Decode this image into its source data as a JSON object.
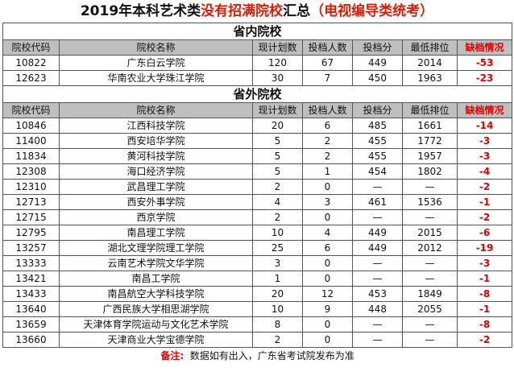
{
  "title": {
    "prefix": "2019年本科艺术类",
    "highlight": "没有招满院校",
    "middle": "汇总",
    "suffix": "（电视编导类统考）"
  },
  "columns": [
    "院校代码",
    "院校名称",
    "现计划数",
    "投档人数",
    "投档分",
    "最低排位",
    "缺档情况"
  ],
  "sections": [
    {
      "label": "省内院校",
      "rows": [
        [
          "10822",
          "广东白云学院",
          "120",
          "67",
          "449",
          "2014",
          "-53"
        ],
        [
          "12623",
          "华南农业大学珠江学院",
          "30",
          "7",
          "450",
          "1963",
          "-23"
        ]
      ]
    },
    {
      "label": "省外院校",
      "rows": [
        [
          "10846",
          "江西科技学院",
          "20",
          "6",
          "485",
          "1661",
          "-14"
        ],
        [
          "11400",
          "西安培华学院",
          "5",
          "2",
          "455",
          "1772",
          "-3"
        ],
        [
          "11834",
          "黄河科技学院",
          "5",
          "2",
          "455",
          "1957",
          "-3"
        ],
        [
          "12308",
          "海口经济学院",
          "5",
          "1",
          "454",
          "1802",
          "-4"
        ],
        [
          "12310",
          "武昌理工学院",
          "2",
          "0",
          "—",
          "—",
          "-2"
        ],
        [
          "12713",
          "西安外事学院",
          "4",
          "3",
          "461",
          "1536",
          "-1"
        ],
        [
          "12715",
          "西京学院",
          "2",
          "0",
          "—",
          "—",
          "-2"
        ],
        [
          "12795",
          "南昌理工学院",
          "10",
          "4",
          "449",
          "2015",
          "-6"
        ],
        [
          "13257",
          "湖北文理学院理工学院",
          "25",
          "6",
          "449",
          "2012",
          "-19"
        ],
        [
          "13333",
          "云南艺术学院文华学院",
          "3",
          "0",
          "—",
          "—",
          "-3"
        ],
        [
          "13421",
          "南昌工学院",
          "1",
          "0",
          "—",
          "—",
          "-1"
        ],
        [
          "13433",
          "南昌航空大学科技学院",
          "20",
          "12",
          "453",
          "1849",
          "-8"
        ],
        [
          "13640",
          "广西民族大学相思湖学院",
          "10",
          "9",
          "448",
          "2055",
          "-1"
        ],
        [
          "13659",
          "天津体育学院运动与文化艺术学院",
          "8",
          "0",
          "—",
          "—",
          "-8"
        ],
        [
          "13660",
          "天津商业大学宝德学院",
          "2",
          "0",
          "—",
          "—",
          "-2"
        ]
      ]
    }
  ],
  "footer": {
    "label": "备注:",
    "text": "数据如有出入，广东省考试院发布为准"
  }
}
